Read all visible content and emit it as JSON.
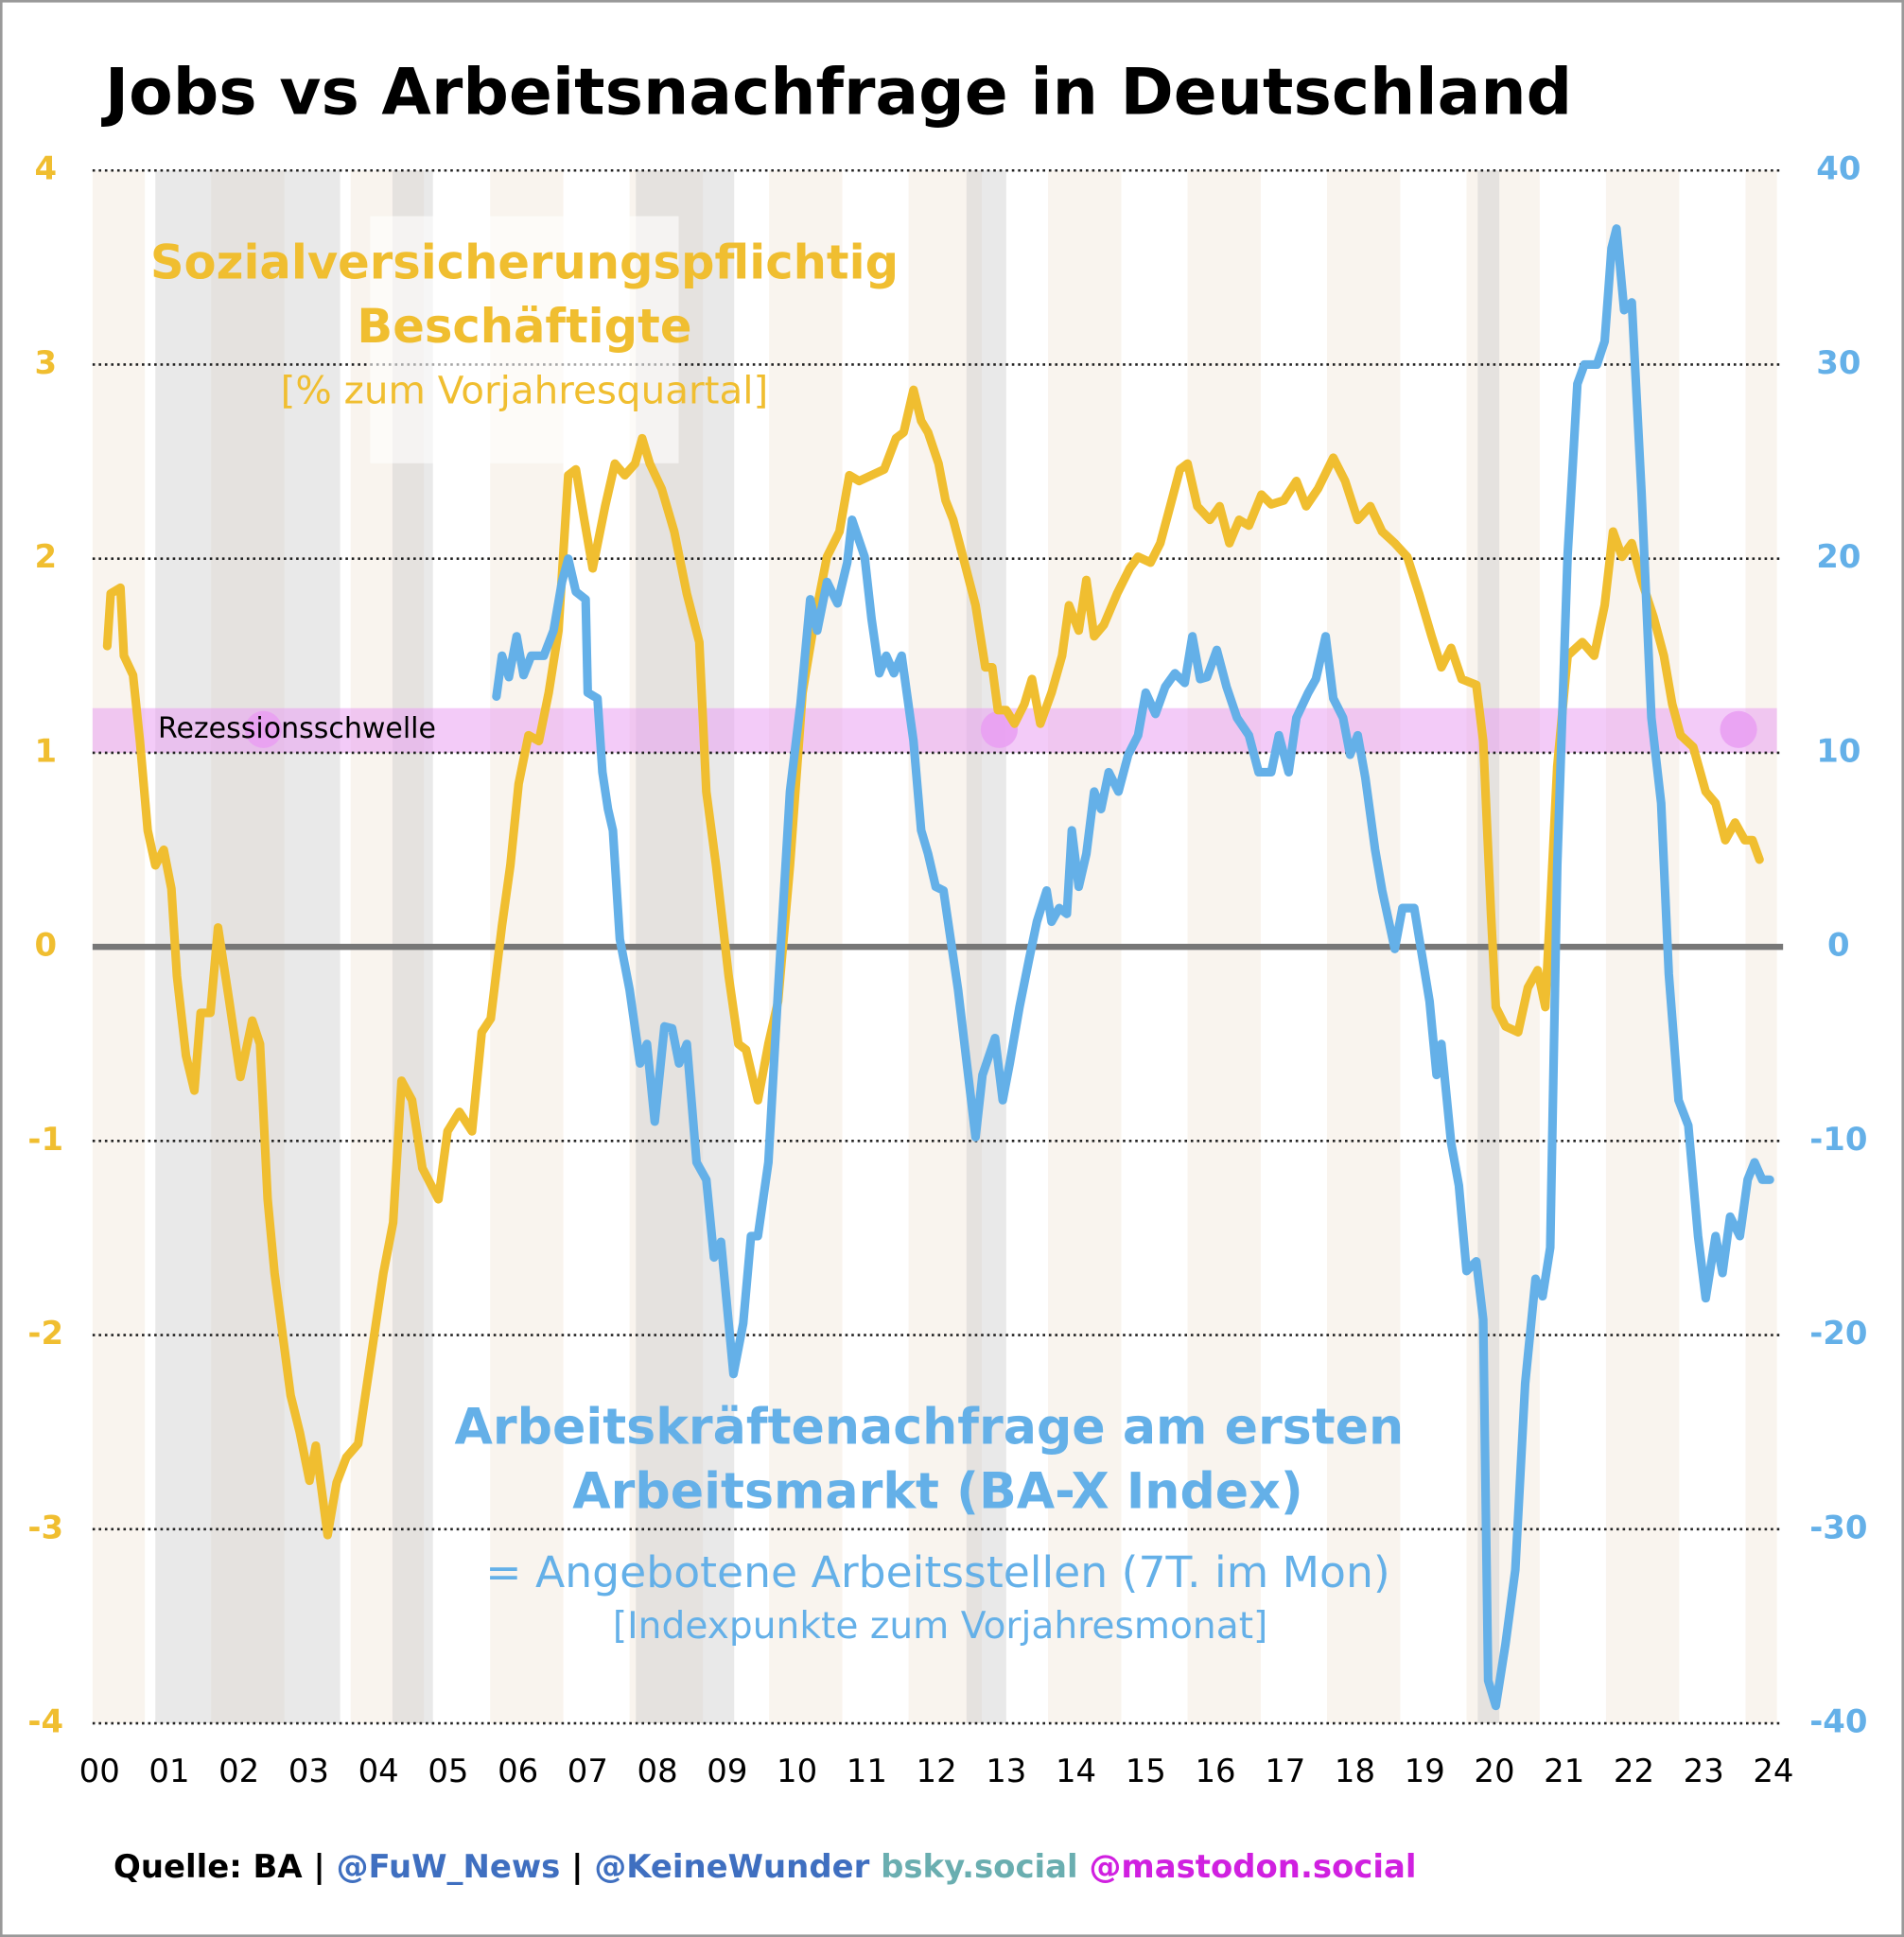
{
  "chart_data": {
    "type": "line",
    "title": "Jobs vs Arbeitsnachfrage in Deutschland",
    "xlim": [
      1999.9,
      2024.05
    ],
    "xticks": [
      {
        "value": 2000,
        "label": "00"
      },
      {
        "value": 2001,
        "label": "01"
      },
      {
        "value": 2002,
        "label": "02"
      },
      {
        "value": 2003,
        "label": "03"
      },
      {
        "value": 2004,
        "label": "04"
      },
      {
        "value": 2005,
        "label": "05"
      },
      {
        "value": 2006,
        "label": "06"
      },
      {
        "value": 2007,
        "label": "07"
      },
      {
        "value": 2008,
        "label": "08"
      },
      {
        "value": 2009,
        "label": "09"
      },
      {
        "value": 2010,
        "label": "10"
      },
      {
        "value": 2011,
        "label": "11"
      },
      {
        "value": 2012,
        "label": "12"
      },
      {
        "value": 2013,
        "label": "13"
      },
      {
        "value": 2014,
        "label": "14"
      },
      {
        "value": 2015,
        "label": "15"
      },
      {
        "value": 2016,
        "label": "16"
      },
      {
        "value": 2017,
        "label": "17"
      },
      {
        "value": 2018,
        "label": "18"
      },
      {
        "value": 2019,
        "label": "19"
      },
      {
        "value": 2020,
        "label": "20"
      },
      {
        "value": 2021,
        "label": "21"
      },
      {
        "value": 2022,
        "label": "22"
      },
      {
        "value": 2023,
        "label": "23"
      },
      {
        "value": 2024,
        "label": "24"
      }
    ],
    "ylim": [
      -4,
      4
    ],
    "yticks": [
      -4,
      -3,
      -2,
      -1,
      0,
      1,
      2,
      3,
      4
    ],
    "y2lim": [
      -40,
      40
    ],
    "y2ticks": [
      -40,
      -30,
      -20,
      -10,
      0,
      10,
      20,
      30,
      40
    ],
    "grid": true,
    "recession_periods": [
      [
        2000.8,
        2003.45
      ],
      [
        2004.2,
        2004.78
      ],
      [
        2007.69,
        2009.1
      ],
      [
        2012.43,
        2013.0
      ],
      [
        2019.76,
        2020.07
      ]
    ],
    "threshold": {
      "label": "Rezessionsschwelle",
      "range": [
        1.0,
        1.23
      ],
      "color": "#e9a0f2",
      "markers_x": [
        2002.35,
        2012.9,
        2023.5
      ],
      "markers_y": 1.12
    },
    "series": [
      {
        "label": [
          "Sozialversicherungspflichtig",
          "Beschäftigte"
        ],
        "unit_label": "[% zum Vorjahresquartal]",
        "color": "#f0be30",
        "axis": "y",
        "x": [
          2000.11,
          2000.16,
          2000.3,
          2000.35,
          2000.48,
          2000.58,
          2000.69,
          2000.8,
          2000.92,
          2001.03,
          2001.11,
          2001.24,
          2001.36,
          2001.45,
          2001.59,
          2001.7,
          2001.86,
          2002.02,
          2002.19,
          2002.3,
          2002.41,
          2002.51,
          2002.74,
          2002.87,
          2003.01,
          2003.1,
          2003.27,
          2003.4,
          2003.54,
          2003.71,
          2003.89,
          2004.07,
          2004.21,
          2004.33,
          2004.48,
          2004.63,
          2004.86,
          2004.99,
          2005.16,
          2005.34,
          2005.48,
          2005.61,
          2005.77,
          2005.89,
          2006.01,
          2006.15,
          2006.3,
          2006.44,
          2006.58,
          2006.72,
          2006.83,
          2006.95,
          2007.07,
          2007.25,
          2007.39,
          2007.53,
          2007.68,
          2007.78,
          2007.89,
          2008.06,
          2008.24,
          2008.42,
          2008.6,
          2008.7,
          2008.84,
          2009.02,
          2009.16,
          2009.27,
          2009.44,
          2009.59,
          2009.73,
          2009.9,
          2010.08,
          2010.26,
          2010.43,
          2010.61,
          2010.75,
          2010.89,
          2011.07,
          2011.25,
          2011.42,
          2011.53,
          2011.67,
          2011.78,
          2011.88,
          2012.03,
          2012.13,
          2012.24,
          2012.38,
          2012.56,
          2012.7,
          2012.8,
          2012.88,
          2013.0,
          2013.12,
          2013.26,
          2013.37,
          2013.49,
          2013.65,
          2013.8,
          2013.9,
          2014.04,
          2014.15,
          2014.26,
          2014.4,
          2014.59,
          2014.77,
          2014.89,
          2015.07,
          2015.21,
          2015.35,
          2015.49,
          2015.6,
          2015.74,
          2015.92,
          2016.06,
          2016.2,
          2016.34,
          2016.48,
          2016.66,
          2016.8,
          2016.98,
          2017.16,
          2017.3,
          2017.47,
          2017.69,
          2017.86,
          2018.04,
          2018.22,
          2018.39,
          2018.57,
          2018.75,
          2018.92,
          2019.1,
          2019.24,
          2019.38,
          2019.53,
          2019.74,
          2019.84,
          2019.95,
          2020.02,
          2020.16,
          2020.34,
          2020.48,
          2020.62,
          2020.73,
          2020.9,
          2021.05,
          2021.26,
          2021.43,
          2021.58,
          2021.7,
          2021.83,
          2021.97,
          2022.11,
          2022.28,
          2022.43,
          2022.55,
          2022.67,
          2022.85,
          2023.03,
          2023.17,
          2023.31,
          2023.45,
          2023.59,
          2023.7,
          2023.8
        ],
        "values": [
          1.55,
          1.82,
          1.85,
          1.5,
          1.4,
          1.06,
          0.6,
          0.42,
          0.5,
          0.3,
          -0.15,
          -0.56,
          -0.74,
          -0.34,
          -0.34,
          0.1,
          -0.28,
          -0.67,
          -0.38,
          -0.5,
          -1.3,
          -1.68,
          -2.31,
          -2.5,
          -2.75,
          -2.57,
          -3.03,
          -2.76,
          -2.63,
          -2.56,
          -2.12,
          -1.68,
          -1.42,
          -0.69,
          -0.79,
          -1.14,
          -1.3,
          -0.95,
          -0.85,
          -0.95,
          -0.44,
          -0.37,
          0.11,
          0.42,
          0.84,
          1.09,
          1.06,
          1.31,
          1.63,
          2.43,
          2.46,
          2.2,
          1.95,
          2.27,
          2.49,
          2.43,
          2.49,
          2.62,
          2.49,
          2.36,
          2.14,
          1.82,
          1.57,
          0.8,
          0.42,
          -0.15,
          -0.5,
          -0.53,
          -0.79,
          -0.5,
          -0.28,
          0.42,
          1.31,
          1.7,
          2.01,
          2.14,
          2.43,
          2.4,
          2.43,
          2.46,
          2.62,
          2.65,
          2.87,
          2.71,
          2.65,
          2.49,
          2.3,
          2.2,
          2.01,
          1.76,
          1.44,
          1.44,
          1.22,
          1.22,
          1.15,
          1.25,
          1.38,
          1.15,
          1.31,
          1.5,
          1.76,
          1.63,
          1.89,
          1.6,
          1.66,
          1.82,
          1.95,
          2.01,
          1.98,
          2.08,
          2.27,
          2.46,
          2.49,
          2.27,
          2.2,
          2.27,
          2.08,
          2.2,
          2.17,
          2.33,
          2.28,
          2.3,
          2.4,
          2.27,
          2.36,
          2.52,
          2.4,
          2.2,
          2.27,
          2.14,
          2.08,
          2.01,
          1.82,
          1.6,
          1.44,
          1.54,
          1.38,
          1.35,
          1.06,
          0.17,
          -0.31,
          -0.41,
          -0.44,
          -0.21,
          -0.12,
          -0.31,
          0.93,
          1.5,
          1.57,
          1.5,
          1.76,
          2.14,
          2.01,
          2.08,
          1.89,
          1.7,
          1.5,
          1.25,
          1.09,
          1.03,
          0.8,
          0.74,
          0.55,
          0.64,
          0.55,
          0.55,
          0.45
        ]
      },
      {
        "label": [
          "Arbeitskräftenachfrage am ersten",
          "Arbeitsmarkt (BA-X Index)"
        ],
        "subtitle": "= Angebotene Arbeitsstellen (7T. im Mon)",
        "unit_label": "[Indexpunkte zum Vorjahresmonat]",
        "color": "#64b0e8",
        "axis": "y2",
        "x": [
          2005.69,
          2005.77,
          2005.87,
          2005.98,
          2006.08,
          2006.19,
          2006.37,
          2006.51,
          2006.63,
          2006.72,
          2006.83,
          2006.97,
          2007.0,
          2007.14,
          2007.21,
          2007.29,
          2007.36,
          2007.46,
          2007.6,
          2007.75,
          2007.85,
          2007.96,
          2008.1,
          2008.21,
          2008.31,
          2008.42,
          2008.56,
          2008.7,
          2008.81,
          2008.91,
          2009.09,
          2009.23,
          2009.34,
          2009.44,
          2009.59,
          2009.73,
          2009.9,
          2010.05,
          2010.19,
          2010.29,
          2010.43,
          2010.58,
          2010.72,
          2010.79,
          2010.97,
          2011.07,
          2011.18,
          2011.28,
          2011.39,
          2011.5,
          2011.67,
          2011.78,
          2011.88,
          2011.99,
          2012.1,
          2012.31,
          2012.56,
          2012.66,
          2012.84,
          2012.95,
          2013.05,
          2013.19,
          2013.33,
          2013.44,
          2013.58,
          2013.65,
          2013.76,
          2013.87,
          2013.94,
          2014.04,
          2014.15,
          2014.26,
          2014.36,
          2014.47,
          2014.61,
          2014.75,
          2014.89,
          2015.0,
          2015.14,
          2015.28,
          2015.42,
          2015.56,
          2015.67,
          2015.78,
          2015.88,
          2016.02,
          2016.16,
          2016.31,
          2016.48,
          2016.62,
          2016.8,
          2016.91,
          2017.05,
          2017.16,
          2017.33,
          2017.44,
          2017.58,
          2017.69,
          2017.83,
          2017.93,
          2018.04,
          2018.15,
          2018.29,
          2018.39,
          2018.57,
          2018.68,
          2018.85,
          2018.96,
          2019.07,
          2019.17,
          2019.24,
          2019.38,
          2019.49,
          2019.6,
          2019.74,
          2019.84,
          2019.91,
          2020.02,
          2020.16,
          2020.3,
          2020.44,
          2020.59,
          2020.69,
          2020.8,
          2020.9,
          2021.05,
          2021.19,
          2021.29,
          2021.47,
          2021.58,
          2021.68,
          2021.75,
          2021.86,
          2021.97,
          2022.11,
          2022.25,
          2022.39,
          2022.5,
          2022.64,
          2022.78,
          2022.92,
          2023.03,
          2023.17,
          2023.27,
          2023.38,
          2023.52,
          2023.63,
          2023.73,
          2023.84,
          2023.95
        ],
        "values": [
          12.9,
          15.0,
          13.9,
          16.0,
          14.0,
          15.0,
          15.0,
          16.3,
          18.8,
          20.0,
          18.3,
          17.9,
          13.1,
          12.8,
          9.0,
          7.1,
          6.0,
          0.4,
          -2.2,
          -6.0,
          -5.0,
          -9.0,
          -4.1,
          -4.2,
          -6.0,
          -5.0,
          -11.1,
          -12.0,
          -16.0,
          -15.2,
          -22.0,
          -19.4,
          -14.9,
          -14.9,
          -11.1,
          -2.2,
          8.0,
          12.5,
          17.9,
          16.3,
          18.8,
          17.7,
          19.8,
          22.0,
          20.1,
          16.9,
          14.1,
          15.0,
          14.1,
          15.0,
          10.6,
          6.0,
          4.8,
          3.1,
          2.9,
          -2.2,
          -9.8,
          -6.6,
          -4.7,
          -7.9,
          -6.0,
          -3.1,
          -0.6,
          1.3,
          2.9,
          1.3,
          2.0,
          1.7,
          6.0,
          3.1,
          4.8,
          8.0,
          7.1,
          9.0,
          8.0,
          9.9,
          10.9,
          13.1,
          12.0,
          13.4,
          14.1,
          13.6,
          16.0,
          13.8,
          13.9,
          15.3,
          13.4,
          11.8,
          10.9,
          9.0,
          9.0,
          10.9,
          9.0,
          11.8,
          13.1,
          13.8,
          16.0,
          12.8,
          11.8,
          9.9,
          10.9,
          8.7,
          5.0,
          2.9,
          -0.1,
          2.0,
          2.0,
          -0.4,
          -2.8,
          -6.6,
          -5.0,
          -10.1,
          -12.3,
          -16.7,
          -16.2,
          -19.2,
          -37.8,
          -39.1,
          -35.9,
          -32.1,
          -22.5,
          -17.1,
          -18.0,
          -15.5,
          4.2,
          20.2,
          29.0,
          30.0,
          30.0,
          31.2,
          36.0,
          37.0,
          32.8,
          33.2,
          23.4,
          11.8,
          7.4,
          -1.4,
          -7.9,
          -9.2,
          -14.9,
          -18.1,
          -14.9,
          -16.8,
          -13.9,
          -14.9,
          -12.0,
          -11.1,
          -12.0,
          -12.0
        ]
      }
    ],
    "footer": [
      {
        "text": "Quelle: BA |",
        "color": "#000000"
      },
      {
        "text": "@FuW_News",
        "color": "#3f6fc0"
      },
      {
        "text": "|",
        "color": "#000000"
      },
      {
        "text": "@KeineWunder",
        "color": "#3f6fc0"
      },
      {
        "text": "bsky.social",
        "color": "#6aaeb0"
      },
      {
        "text": "@mastodon.social",
        "color": "#d020e0"
      }
    ]
  }
}
